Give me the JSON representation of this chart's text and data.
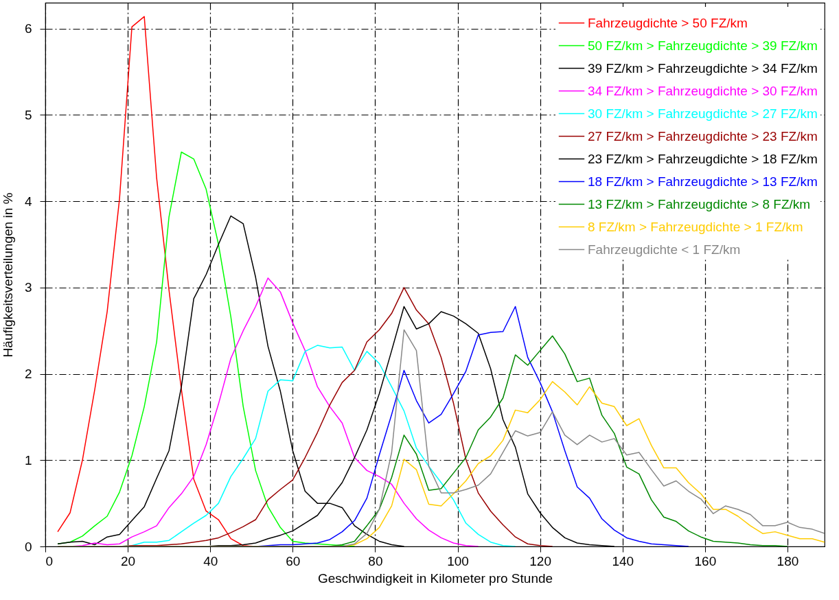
{
  "chart_data": {
    "type": "line",
    "xlabel": "Geschwindigkeit in Kilometer pro Stunde",
    "ylabel": "Häufigkeitsverteilungen in %",
    "xlim": [
      0,
      189
    ],
    "ylim": [
      0,
      6.3
    ],
    "xticks": [
      0,
      20,
      40,
      60,
      80,
      100,
      120,
      140,
      160,
      180
    ],
    "yticks": [
      0,
      1,
      2,
      3,
      4,
      5,
      6
    ],
    "grid": true,
    "legend": "top right",
    "line_style": "solid",
    "series": [
      {
        "name": "Fahrzeugdichte > 50 FZ/km",
        "color": "#ff0000",
        "x": [
          3,
          6,
          9,
          12,
          15,
          18,
          21,
          24,
          27,
          30,
          33,
          36,
          39,
          42,
          45,
          48,
          51
        ],
        "values": [
          0.17,
          0.39,
          1.0,
          1.82,
          2.72,
          4.03,
          6.02,
          6.14,
          4.27,
          2.97,
          1.82,
          0.78,
          0.41,
          0.31,
          0.09,
          0.01,
          0
        ]
      },
      {
        "name": "50 FZ/km > Fahrzeugdichte > 39 FZ/km",
        "color": "#00ff00",
        "x": [
          3,
          6,
          9,
          12,
          15,
          18,
          21,
          24,
          27,
          30,
          33,
          36,
          39,
          42,
          45,
          48,
          51,
          54,
          57,
          60,
          63,
          66,
          69,
          72,
          75
        ],
        "values": [
          0.03,
          0.05,
          0.12,
          0.24,
          0.35,
          0.63,
          1.05,
          1.62,
          2.37,
          3.82,
          4.57,
          4.49,
          4.14,
          3.5,
          2.66,
          1.62,
          0.88,
          0.46,
          0.22,
          0.06,
          0.04,
          0.03,
          0.02,
          0.01,
          0
        ]
      },
      {
        "name": "39 FZ/km > Fahrzeugdichte > 34 FZ/km",
        "color": "#000000",
        "x": [
          3,
          6,
          9,
          12,
          15,
          18,
          21,
          24,
          27,
          30,
          33,
          36,
          39,
          42,
          45,
          48,
          51,
          54,
          57,
          60,
          63,
          66,
          69,
          72,
          75,
          78,
          81,
          84,
          87
        ],
        "values": [
          0.03,
          0.05,
          0.06,
          0.02,
          0.11,
          0.14,
          0.3,
          0.46,
          0.79,
          1.11,
          1.85,
          2.87,
          3.15,
          3.5,
          3.83,
          3.74,
          3.12,
          2.32,
          1.8,
          1.11,
          0.64,
          0.5,
          0.5,
          0.45,
          0.24,
          0.14,
          0.06,
          0.02,
          0
        ]
      },
      {
        "name": "34 FZ/km > Fahrzeugdichte > 30 FZ/km",
        "color": "#ff00ff",
        "x": [
          3,
          6,
          9,
          12,
          15,
          18,
          21,
          24,
          27,
          30,
          33,
          36,
          39,
          42,
          45,
          48,
          51,
          54,
          57,
          60,
          63,
          66,
          69,
          72,
          75,
          78,
          81,
          84,
          87,
          90,
          93,
          96,
          99,
          102,
          105
        ],
        "values": [
          0,
          0,
          0.01,
          0.04,
          0.02,
          0.03,
          0.11,
          0.17,
          0.24,
          0.45,
          0.61,
          0.81,
          1.18,
          1.65,
          2.18,
          2.5,
          2.78,
          3.11,
          2.95,
          2.59,
          2.27,
          1.85,
          1.62,
          1.43,
          1.03,
          0.88,
          0.81,
          0.72,
          0.5,
          0.32,
          0.19,
          0.1,
          0.04,
          0.01,
          0
        ]
      },
      {
        "name": "30 FZ/km > Fahrzeugdichte > 27 FZ/km",
        "color": "#00ffff",
        "x": [
          3,
          18,
          21,
          24,
          27,
          30,
          33,
          36,
          39,
          42,
          45,
          48,
          51,
          54,
          57,
          60,
          63,
          66,
          69,
          72,
          75,
          78,
          81,
          84,
          87,
          90,
          93,
          96,
          99,
          102,
          105,
          108,
          111,
          114
        ],
        "values": [
          0,
          0,
          0.01,
          0.05,
          0.05,
          0.07,
          0.17,
          0.27,
          0.36,
          0.5,
          0.81,
          1.02,
          1.25,
          1.8,
          1.93,
          1.92,
          2.26,
          2.33,
          2.3,
          2.31,
          2.04,
          2.26,
          2.12,
          1.85,
          1.57,
          1.14,
          0.93,
          0.74,
          0.54,
          0.27,
          0.14,
          0.05,
          0.01,
          0
        ]
      },
      {
        "name": "27 FZ/km > Fahrzeugdichte > 23 FZ/km",
        "color": "#990000",
        "x": [
          3,
          18,
          21,
          24,
          27,
          30,
          33,
          36,
          39,
          42,
          45,
          48,
          51,
          54,
          57,
          60,
          63,
          66,
          69,
          72,
          75,
          78,
          81,
          84,
          87,
          90,
          93,
          96,
          99,
          102,
          105,
          108,
          111,
          114,
          117,
          120,
          123
        ],
        "values": [
          0,
          0,
          0.01,
          0.01,
          0.01,
          0.02,
          0.03,
          0.05,
          0.07,
          0.1,
          0.16,
          0.23,
          0.31,
          0.54,
          0.66,
          0.77,
          1.03,
          1.32,
          1.64,
          1.9,
          2.04,
          2.37,
          2.51,
          2.7,
          3.0,
          2.74,
          2.58,
          2.19,
          1.66,
          1.01,
          0.62,
          0.41,
          0.25,
          0.11,
          0.03,
          0.01,
          0
        ]
      },
      {
        "name": "23 FZ/km > Fahrzeugdichte > 18 FZ/km",
        "color": "#000000",
        "x": [
          3,
          39,
          42,
          45,
          48,
          51,
          54,
          57,
          60,
          63,
          66,
          69,
          72,
          75,
          78,
          81,
          84,
          87,
          90,
          93,
          96,
          99,
          102,
          105,
          108,
          111,
          114,
          117,
          120,
          123,
          126,
          129,
          132,
          135,
          138
        ],
        "values": [
          0,
          0,
          0.01,
          0.01,
          0.02,
          0.04,
          0.09,
          0.13,
          0.18,
          0.27,
          0.36,
          0.55,
          0.74,
          1.03,
          1.35,
          1.77,
          2.27,
          2.78,
          2.52,
          2.58,
          2.72,
          2.67,
          2.58,
          2.47,
          2.06,
          1.47,
          1.15,
          0.61,
          0.39,
          0.22,
          0.1,
          0.04,
          0.02,
          0.01,
          0
        ]
      },
      {
        "name": "18 FZ/km > Fahrzeugdichte > 13 FZ/km",
        "color": "#0000ff",
        "x": [
          3,
          51,
          54,
          57,
          60,
          63,
          66,
          69,
          72,
          75,
          78,
          81,
          84,
          87,
          90,
          93,
          96,
          99,
          102,
          105,
          108,
          111,
          114,
          117,
          120,
          123,
          126,
          129,
          132,
          135,
          138,
          141,
          144,
          147,
          150,
          153,
          156
        ],
        "values": [
          0,
          0,
          0.01,
          0.02,
          0.02,
          0.03,
          0.04,
          0.08,
          0.17,
          0.3,
          0.56,
          1.06,
          1.53,
          2.04,
          1.69,
          1.43,
          1.53,
          1.77,
          2.03,
          2.45,
          2.48,
          2.49,
          2.78,
          2.19,
          1.9,
          1.56,
          1.11,
          0.69,
          0.56,
          0.32,
          0.19,
          0.1,
          0.06,
          0.03,
          0.02,
          0.01,
          0
        ]
      },
      {
        "name": "13 FZ/km > Fahrzeugdichte > 8 FZ/km",
        "color": "#008800",
        "x": [
          3,
          69,
          72,
          75,
          78,
          81,
          84,
          87,
          90,
          93,
          96,
          99,
          102,
          105,
          108,
          111,
          114,
          117,
          120,
          123,
          126,
          129,
          132,
          135,
          138,
          141,
          144,
          147,
          150,
          153,
          156,
          159,
          162,
          165,
          168,
          171,
          174,
          177,
          180
        ],
        "values": [
          0,
          0,
          0.02,
          0.06,
          0.24,
          0.43,
          0.8,
          1.29,
          1.07,
          0.65,
          0.67,
          0.85,
          1.03,
          1.35,
          1.5,
          1.72,
          2.22,
          2.1,
          2.27,
          2.44,
          2.23,
          1.91,
          1.95,
          1.52,
          1.31,
          0.92,
          0.84,
          0.54,
          0.34,
          0.29,
          0.18,
          0.11,
          0.06,
          0.05,
          0.04,
          0.02,
          0.01,
          0.01,
          0
        ]
      },
      {
        "name": "8 FZ/km > Fahrzeugdichte > 1 FZ/km",
        "color": "#ffcc00",
        "x": [
          3,
          72,
          75,
          78,
          81,
          84,
          87,
          90,
          93,
          96,
          99,
          102,
          105,
          108,
          111,
          114,
          117,
          120,
          123,
          126,
          129,
          132,
          135,
          138,
          141,
          144,
          147,
          150,
          153,
          156,
          159,
          162,
          165,
          168,
          171,
          174,
          177,
          180,
          183,
          186,
          189
        ],
        "values": [
          0,
          0,
          0.02,
          0.09,
          0.22,
          0.47,
          1.01,
          0.89,
          0.49,
          0.47,
          0.61,
          0.76,
          0.96,
          1.05,
          1.23,
          1.58,
          1.55,
          1.7,
          1.91,
          1.79,
          1.64,
          1.85,
          1.66,
          1.62,
          1.4,
          1.48,
          1.17,
          0.91,
          0.91,
          0.74,
          0.61,
          0.43,
          0.43,
          0.35,
          0.24,
          0.15,
          0.17,
          0.13,
          0.09,
          0.09,
          0.05
        ]
      },
      {
        "name": "Fahrzeugdichte < 1 FZ/km",
        "color": "#888888",
        "x": [
          3,
          72,
          75,
          78,
          81,
          84,
          87,
          90,
          93,
          96,
          99,
          102,
          105,
          108,
          111,
          114,
          117,
          120,
          123,
          126,
          129,
          132,
          135,
          138,
          141,
          144,
          147,
          150,
          153,
          156,
          159,
          162,
          165,
          168,
          171,
          174,
          177,
          180,
          183,
          186,
          189
        ],
        "values": [
          0,
          0,
          0.03,
          0.15,
          0.43,
          1.09,
          2.51,
          2.27,
          0.93,
          0.62,
          0.62,
          0.66,
          0.71,
          0.84,
          1.09,
          1.34,
          1.28,
          1.32,
          1.56,
          1.29,
          1.18,
          1.29,
          1.21,
          1.25,
          1.06,
          1.09,
          0.89,
          0.7,
          0.76,
          0.64,
          0.55,
          0.38,
          0.47,
          0.43,
          0.37,
          0.24,
          0.24,
          0.28,
          0.22,
          0.2,
          0.15
        ]
      }
    ]
  }
}
